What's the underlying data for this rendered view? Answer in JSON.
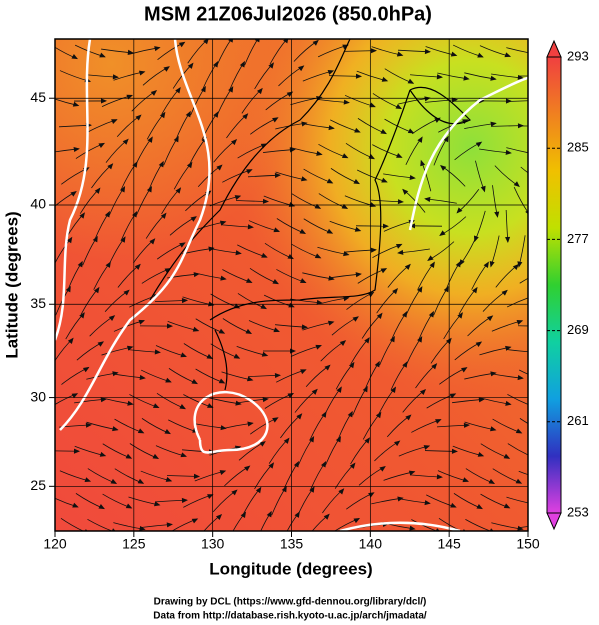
{
  "chart_data": {
    "type": "streamline",
    "title": "MSM 21Z06Jul2026 (850.0hPa)",
    "x_label": "Longitude (degrees)",
    "y_label": "Latitude  (degrees)",
    "xlim": [
      120,
      150
    ],
    "xticks": [
      120,
      125,
      130,
      135,
      140,
      145,
      150
    ],
    "ylim": [
      22.4,
      47.6
    ],
    "yticks": [
      25,
      30,
      35,
      40,
      45
    ],
    "grid": true,
    "colorbar": {
      "lim": [
        253,
        293
      ],
      "ticks": [
        253,
        261,
        269,
        277,
        285,
        293
      ],
      "colors": [
        "#e040e0",
        "#3030c0",
        "#10a0e0",
        "#10d0a0",
        "#30d030",
        "#c0e000",
        "#f0c000",
        "#f08020",
        "#f04040"
      ]
    },
    "footer": [
      "Drawing by DCL (https://www.gfd-dennou.org/library/dcl/)",
      "Data from http://database.rish.kyoto-u.ac.jp/arch/jmadata/"
    ]
  }
}
